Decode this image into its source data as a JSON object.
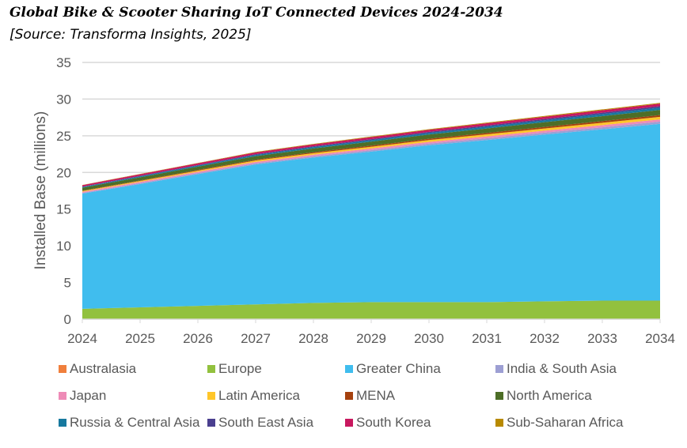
{
  "chart_data": {
    "type": "area",
    "stacked": true,
    "title": "Global Bike & Scooter Sharing IoT Connected Devices 2024-2034",
    "subtitle": "[Source: Transforma Insights, 2025]",
    "xlabel": "",
    "ylabel": "Installed Base (millions)",
    "ylim": [
      0,
      35
    ],
    "yticks": [
      "0",
      "5",
      "10",
      "15",
      "20",
      "25",
      "30",
      "35"
    ],
    "x": [
      "2024",
      "2025",
      "2026",
      "2027",
      "2028",
      "2029",
      "2030",
      "2031",
      "2032",
      "2033",
      "2034"
    ],
    "grid": true,
    "legend_position": "bottom",
    "series": [
      {
        "name": "Australasia",
        "color": "#F07F3C",
        "values": [
          0.02,
          0.02,
          0.02,
          0.02,
          0.02,
          0.03,
          0.03,
          0.03,
          0.03,
          0.03,
          0.03
        ]
      },
      {
        "name": "Europe",
        "color": "#92C13E",
        "values": [
          1.4,
          1.6,
          1.8,
          2.0,
          2.2,
          2.3,
          2.3,
          2.3,
          2.4,
          2.5,
          2.5
        ]
      },
      {
        "name": "Greater China",
        "color": "#40BDEE",
        "values": [
          15.7,
          16.81,
          17.96,
          19.07,
          19.82,
          20.52,
          21.38,
          22.09,
          22.74,
          23.35,
          24.1
        ]
      },
      {
        "name": "India & South Asia",
        "color": "#9D9FD3",
        "values": [
          0.1,
          0.12,
          0.14,
          0.16,
          0.18,
          0.2,
          0.22,
          0.24,
          0.26,
          0.28,
          0.3
        ]
      },
      {
        "name": "Japan",
        "color": "#EE8BB7",
        "values": [
          0.15,
          0.17,
          0.18,
          0.2,
          0.21,
          0.23,
          0.24,
          0.26,
          0.27,
          0.29,
          0.3
        ]
      },
      {
        "name": "Latin America",
        "color": "#FFC629",
        "values": [
          0.1,
          0.13,
          0.15,
          0.18,
          0.2,
          0.23,
          0.25,
          0.28,
          0.3,
          0.33,
          0.35
        ]
      },
      {
        "name": "MENA",
        "color": "#A5410E",
        "values": [
          0.05,
          0.07,
          0.09,
          0.11,
          0.13,
          0.15,
          0.17,
          0.19,
          0.21,
          0.23,
          0.25
        ]
      },
      {
        "name": "North America",
        "color": "#4D6E27",
        "values": [
          0.4,
          0.43,
          0.46,
          0.49,
          0.52,
          0.55,
          0.58,
          0.61,
          0.64,
          0.67,
          0.7
        ]
      },
      {
        "name": "Russia & Central Asia",
        "color": "#17799F",
        "values": [
          0.1,
          0.12,
          0.14,
          0.16,
          0.18,
          0.2,
          0.22,
          0.24,
          0.26,
          0.28,
          0.3
        ]
      },
      {
        "name": "South East Asia",
        "color": "#4A3F8F",
        "values": [
          0.05,
          0.07,
          0.08,
          0.1,
          0.11,
          0.13,
          0.14,
          0.16,
          0.17,
          0.19,
          0.2
        ]
      },
      {
        "name": "South Korea",
        "color": "#C8185F",
        "values": [
          0.2,
          0.22,
          0.23,
          0.25,
          0.26,
          0.28,
          0.29,
          0.31,
          0.32,
          0.34,
          0.35
        ]
      },
      {
        "name": "Sub-Saharan Africa",
        "color": "#B88A00",
        "values": [
          0.03,
          0.04,
          0.05,
          0.06,
          0.07,
          0.08,
          0.08,
          0.09,
          0.1,
          0.11,
          0.12
        ]
      }
    ]
  }
}
